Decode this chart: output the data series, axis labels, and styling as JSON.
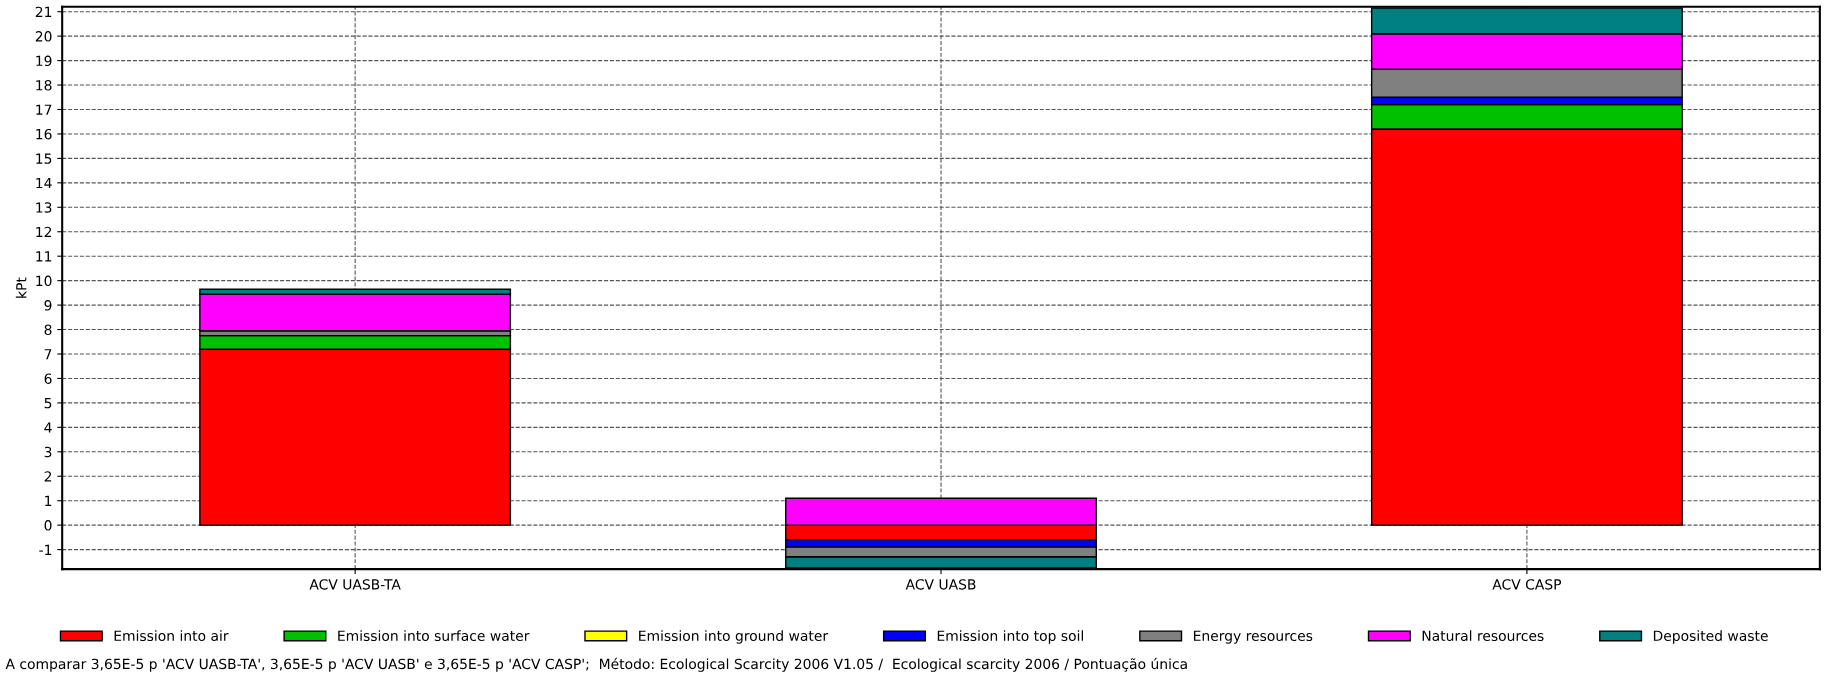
{
  "chart_data": {
    "type": "bar",
    "stacked": true,
    "ylabel": "kPt",
    "categories": [
      "ACV UASB-TA",
      "ACV UASB",
      "ACV CASP"
    ],
    "series": [
      {
        "name": "Emission into air",
        "color": "#ff0000",
        "values": [
          7.2,
          -0.6,
          16.2
        ]
      },
      {
        "name": "Emission into surface water",
        "color": "#00c000",
        "values": [
          0.55,
          0,
          1.0
        ]
      },
      {
        "name": "Emission into ground water",
        "color": "#ffff00",
        "values": [
          0,
          0,
          0
        ]
      },
      {
        "name": "Emission into top soil",
        "color": "#0000ff",
        "values": [
          null,
          -0.3,
          0.3
        ]
      },
      {
        "name": "Energy resources",
        "color": "#808080",
        "values": [
          0.2,
          -0.4,
          1.15
        ]
      },
      {
        "name": "Natural resources",
        "color": "#ff00ff",
        "values": [
          1.5,
          1.1,
          1.45
        ]
      },
      {
        "name": "Deposited waste",
        "color": "#008080",
        "values": [
          0.2,
          -0.45,
          1.05
        ]
      }
    ],
    "ylim": [
      -1.8,
      21.2
    ],
    "yticks": [
      -1,
      0,
      1,
      2,
      3,
      4,
      5,
      6,
      7,
      8,
      9,
      10,
      11,
      12,
      13,
      14,
      15,
      16,
      17,
      18,
      19,
      20,
      21
    ],
    "grid": true,
    "legend": "bottom",
    "annotations": [
      "A comparar 3,65E-5 p 'ACV UASB-TA', 3,65E-5 p 'ACV UASB' e 3,65E-5 p 'ACV CASP';  Método: Ecological Scarcity 2006 V1.05 /  Ecological scarcity 2006 / Pontuação única"
    ]
  }
}
